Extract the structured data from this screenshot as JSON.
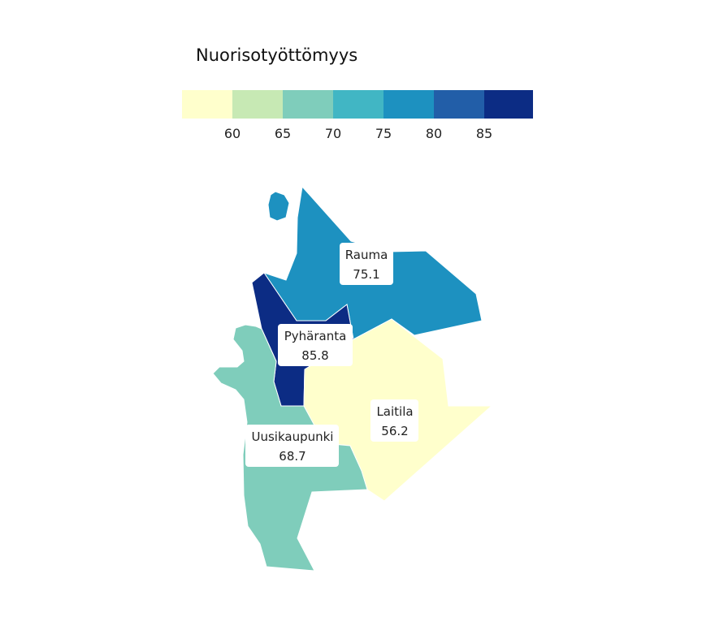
{
  "legend": {
    "title": "Nuorisotyöttömyys",
    "ticks": [
      "60",
      "65",
      "70",
      "75",
      "80",
      "85"
    ],
    "bins": [
      "#ffffcc",
      "#c7e9b4",
      "#7fcdbb",
      "#41b6c4",
      "#1d91c0",
      "#225ea8",
      "#0c2c84"
    ]
  },
  "regions": [
    {
      "name": "Rauma",
      "value": "75.1",
      "color": "#1d91c0"
    },
    {
      "name": "Pyhäranta",
      "value": "85.8",
      "color": "#0c2c84"
    },
    {
      "name": "Laitila",
      "value": "56.2",
      "color": "#ffffcc"
    },
    {
      "name": "Uusikaupunki",
      "value": "68.7",
      "color": "#7fcdbb"
    }
  ]
}
